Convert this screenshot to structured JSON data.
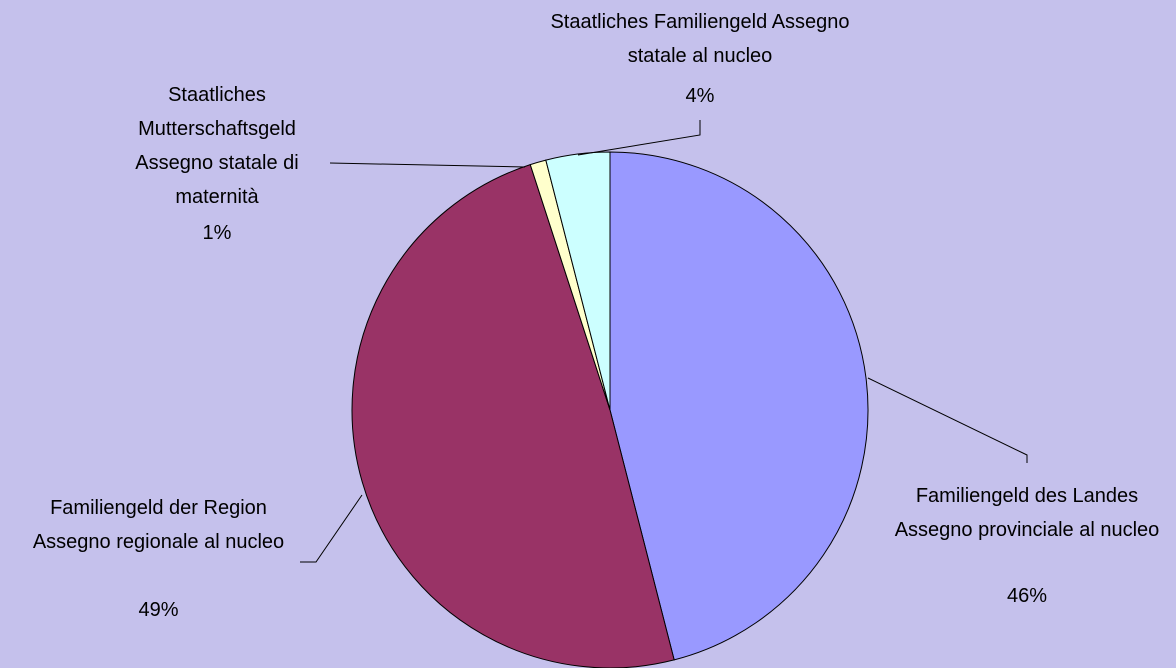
{
  "chart_data": {
    "type": "pie",
    "categories": [
      "Familiengeld des Landes Assegno provinciale al nucleo",
      "Familiengeld der Region Assegno regionale al nucleo",
      "Staatliches Mutterschaftsgeld Assegno statale di maternità",
      "Staatliches Familiengeld Assegno statale al nucleo"
    ],
    "values": [
      46,
      49,
      1,
      4
    ],
    "value_labels": [
      "46%",
      "49%",
      "1%",
      "4%"
    ],
    "colors": [
      "#9999ff",
      "#993366",
      "#ffffcc",
      "#ccffff"
    ]
  }
}
